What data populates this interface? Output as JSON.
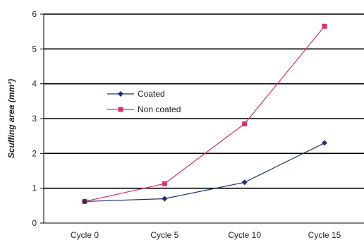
{
  "chart_data": {
    "type": "line",
    "categories": [
      "Cycle 0",
      "Cycle 5",
      "Cycle 10",
      "Cycle 15"
    ],
    "ylabel": "Scuffing area (mm²)",
    "ylim": [
      0,
      6
    ],
    "yticks": [
      "0",
      "1",
      "2",
      "3",
      "4",
      "5",
      "6"
    ],
    "grid": "horizontal",
    "legend_position": "upper-left",
    "series": [
      {
        "name": "Coated",
        "values": [
          0.62,
          0.7,
          1.17,
          2.3
        ],
        "color": "#1f2f7a",
        "marker": "diamond"
      },
      {
        "name": "Non coated",
        "values": [
          0.62,
          1.13,
          2.85,
          5.65
        ],
        "color": "#e0306a",
        "marker": "square"
      }
    ]
  }
}
